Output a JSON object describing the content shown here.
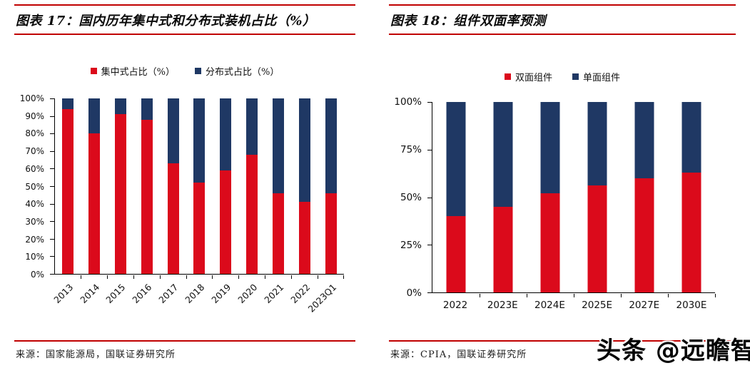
{
  "watermark": {
    "text": "头条 @远瞻智库"
  },
  "colors": {
    "rule_red": "#c00000",
    "bar_red": "#db0a1b",
    "bar_navy": "#1f3864",
    "background": "#ffffff"
  },
  "panels": [
    {
      "title": "图表 17：国内历年集中式和分布式装机占比（%）",
      "source": "来源：国家能源局，国联证券研究所"
    },
    {
      "title": "图表 18：组件双面率预测",
      "source": "来源：CPIA，国联证券研究所"
    }
  ],
  "chart_data": [
    {
      "type": "bar",
      "stacked": true,
      "title": "国内历年集中式和分布式装机占比（%）",
      "categories": [
        "2013",
        "2014",
        "2015",
        "2016",
        "2017",
        "2018",
        "2019",
        "2020",
        "2021",
        "2022",
        "2023Q1"
      ],
      "series": [
        {
          "name": "集中式占比（%）",
          "color": "#db0a1b",
          "values": [
            94,
            80,
            91,
            88,
            63,
            52,
            59,
            68,
            46,
            41,
            46
          ]
        },
        {
          "name": "分布式占比（%）",
          "color": "#1f3864",
          "values": [
            6,
            20,
            9,
            12,
            37,
            48,
            41,
            32,
            54,
            59,
            54
          ]
        }
      ],
      "xlabel": "",
      "ylabel": "",
      "ylim": [
        0,
        100
      ],
      "yticks": [
        "0%",
        "10%",
        "20%",
        "30%",
        "40%",
        "50%",
        "60%",
        "70%",
        "80%",
        "90%",
        "100%"
      ],
      "grid": false,
      "legend_position": "top",
      "x_label_rotation": -45
    },
    {
      "type": "bar",
      "stacked": true,
      "title": "组件双面率预测",
      "categories": [
        "2022",
        "2023E",
        "2024E",
        "2025E",
        "2027E",
        "2030E"
      ],
      "series": [
        {
          "name": "双面组件",
          "color": "#db0a1b",
          "values": [
            40,
            45,
            52,
            56,
            60,
            63
          ]
        },
        {
          "name": "单面组件",
          "color": "#1f3864",
          "values": [
            60,
            55,
            48,
            44,
            40,
            37
          ]
        }
      ],
      "xlabel": "",
      "ylabel": "",
      "ylim": [
        0,
        100
      ],
      "yticks": [
        "0%",
        "25%",
        "50%",
        "75%",
        "100%"
      ],
      "grid": false,
      "legend_position": "top",
      "x_label_rotation": 0
    }
  ]
}
